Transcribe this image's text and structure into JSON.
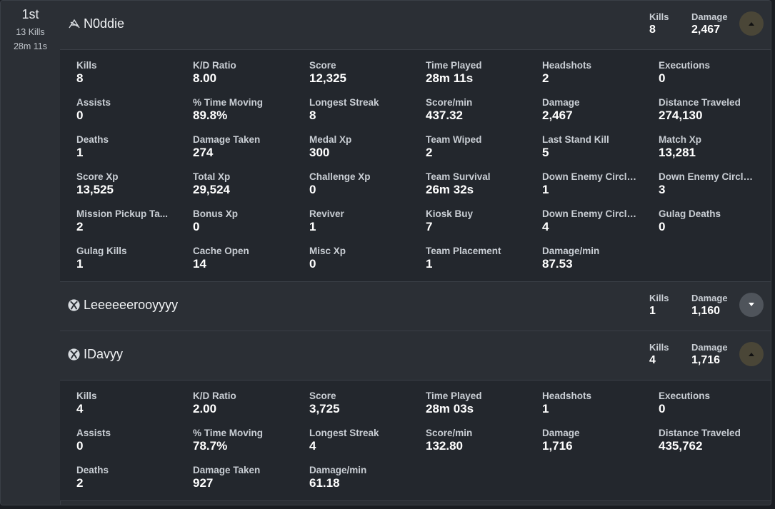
{
  "placement": {
    "rank": "1st",
    "kills": "13 Kills",
    "time": "28m 11s"
  },
  "colors": {
    "open_button": "#4a4637",
    "closed_button": "#4f545b",
    "panel": "#2b2f35",
    "detail": "#23272d"
  },
  "players": [
    {
      "name": "N0ddie",
      "platform_icon": "activision-icon",
      "kills_label": "Kills",
      "kills": "8",
      "damage_label": "Damage",
      "damage": "2,467",
      "expanded": true,
      "stats": [
        {
          "label": "Kills",
          "value": "8"
        },
        {
          "label": "K/D Ratio",
          "value": "8.00"
        },
        {
          "label": "Score",
          "value": "12,325"
        },
        {
          "label": "Time Played",
          "value": "28m 11s"
        },
        {
          "label": "Headshots",
          "value": "2"
        },
        {
          "label": "Executions",
          "value": "0"
        },
        {
          "label": "Assists",
          "value": "0"
        },
        {
          "label": "% Time Moving",
          "value": "89.8%"
        },
        {
          "label": "Longest Streak",
          "value": "8"
        },
        {
          "label": "Score/min",
          "value": "437.32"
        },
        {
          "label": "Damage",
          "value": "2,467"
        },
        {
          "label": "Distance Traveled",
          "value": "274,130"
        },
        {
          "label": "Deaths",
          "value": "1"
        },
        {
          "label": "Damage Taken",
          "value": "274"
        },
        {
          "label": "Medal Xp",
          "value": "300"
        },
        {
          "label": "Team Wiped",
          "value": "2"
        },
        {
          "label": "Last Stand Kill",
          "value": "5"
        },
        {
          "label": "Match Xp",
          "value": "13,281"
        },
        {
          "label": "Score Xp",
          "value": "13,525"
        },
        {
          "label": "Total Xp",
          "value": "29,524"
        },
        {
          "label": "Challenge Xp",
          "value": "0"
        },
        {
          "label": "Team Survival",
          "value": "26m 32s"
        },
        {
          "label": "Down Enemy Circle...",
          "value": "1"
        },
        {
          "label": "Down Enemy Circle...",
          "value": "3"
        },
        {
          "label": "Mission Pickup Ta...",
          "value": "2"
        },
        {
          "label": "Bonus Xp",
          "value": "0"
        },
        {
          "label": "Reviver",
          "value": "1"
        },
        {
          "label": "Kiosk Buy",
          "value": "7"
        },
        {
          "label": "Down Enemy Circle...",
          "value": "4"
        },
        {
          "label": "Gulag Deaths",
          "value": "0"
        },
        {
          "label": "Gulag Kills",
          "value": "1"
        },
        {
          "label": "Cache Open",
          "value": "14"
        },
        {
          "label": "Misc Xp",
          "value": "0"
        },
        {
          "label": "Team Placement",
          "value": "1"
        },
        {
          "label": "Damage/min",
          "value": "87.53"
        }
      ]
    },
    {
      "name": "Leeeeeerooyyyy",
      "platform_icon": "xbox-icon",
      "kills_label": "Kills",
      "kills": "1",
      "damage_label": "Damage",
      "damage": "1,160",
      "expanded": false,
      "stats": []
    },
    {
      "name": "IDavyy",
      "platform_icon": "xbox-icon",
      "kills_label": "Kills",
      "kills": "4",
      "damage_label": "Damage",
      "damage": "1,716",
      "expanded": true,
      "stats": [
        {
          "label": "Kills",
          "value": "4"
        },
        {
          "label": "K/D Ratio",
          "value": "2.00"
        },
        {
          "label": "Score",
          "value": "3,725"
        },
        {
          "label": "Time Played",
          "value": "28m 03s"
        },
        {
          "label": "Headshots",
          "value": "1"
        },
        {
          "label": "Executions",
          "value": "0"
        },
        {
          "label": "Assists",
          "value": "0"
        },
        {
          "label": "% Time Moving",
          "value": "78.7%"
        },
        {
          "label": "Longest Streak",
          "value": "4"
        },
        {
          "label": "Score/min",
          "value": "132.80"
        },
        {
          "label": "Damage",
          "value": "1,716"
        },
        {
          "label": "Distance Traveled",
          "value": "435,762"
        },
        {
          "label": "Deaths",
          "value": "2"
        },
        {
          "label": "Damage Taken",
          "value": "927"
        },
        {
          "label": "Damage/min",
          "value": "61.18"
        }
      ]
    }
  ]
}
